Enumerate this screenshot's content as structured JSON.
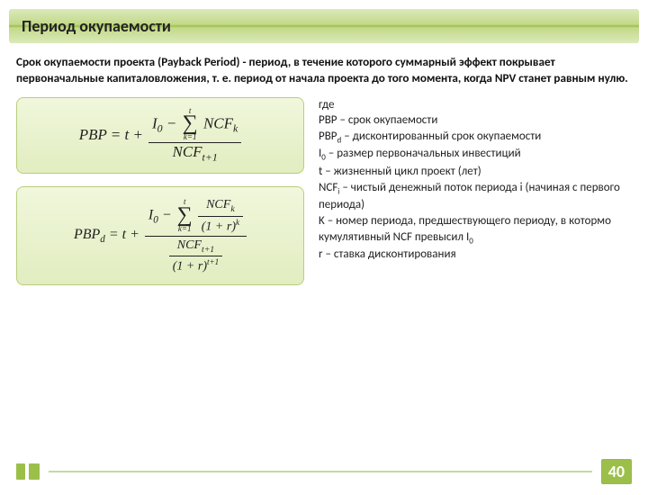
{
  "title": "Период окупаемости",
  "intro": {
    "bold_lead": "Срок окупаемости проекта",
    "rest": " (Payback Period) - период, в течение которого суммарный эффект покрывает первоначальные капиталовложения, т. е. период от начала проекта до того момента, когда NPV станет равным нулю."
  },
  "legend": {
    "l0": "где",
    "l1": "PBP – срок окупаемости",
    "l2_a": "PBP",
    "l2_sub": "d",
    "l2_b": " – дисконтированный срок окупаемости",
    "l3_a": "I",
    "l3_sub": "0",
    "l3_b": " – размер первоначальных инвестиций",
    "l4": "t – жизненный цикл проект (лет)",
    "l5_a": "NCF",
    "l5_sub": "i",
    "l5_b": " – чистый денежный поток периода i (начиная с первого периода)",
    "l6_a": "K – номер периода, предшествующего периоду, в котормо кумулятивный NCF превысил I",
    "l6_sub": "0",
    "l7": "r – ставка дисконтирования"
  },
  "page_number": "40",
  "colors": {
    "accent": "#9cbf4a",
    "box_border": "#b7cf7c"
  }
}
